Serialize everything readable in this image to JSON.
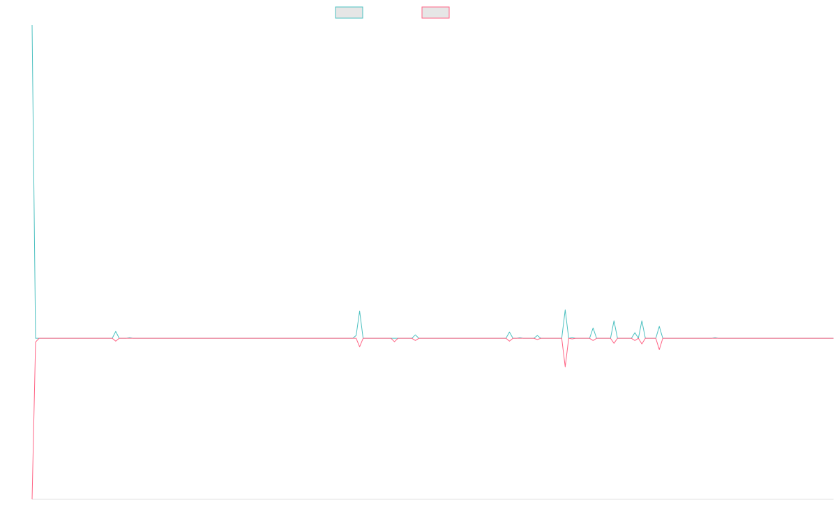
{
  "chart_data": {
    "type": "line",
    "categories": [
      null,
      null,
      null,
      null,
      null,
      null,
      null,
      null,
      null,
      null,
      null,
      null,
      null,
      null,
      null,
      null,
      null,
      null,
      null,
      null,
      null,
      null,
      null,
      null,
      null,
      null,
      null,
      null,
      null,
      null,
      null,
      null,
      null,
      null,
      null,
      null,
      null,
      null,
      null,
      null,
      null,
      null,
      null,
      null,
      null,
      null,
      null,
      null,
      null,
      null,
      null,
      null,
      null,
      null,
      null,
      null,
      null,
      null,
      null,
      null,
      null,
      null,
      null,
      null,
      null,
      null,
      null,
      null,
      null,
      null,
      null,
      null,
      null,
      null,
      null,
      null,
      null,
      null,
      null,
      null,
      null,
      null,
      null,
      null,
      null,
      null,
      null,
      null,
      null,
      null,
      null,
      null,
      null,
      null,
      null,
      null,
      null,
      null,
      null,
      null,
      null,
      null,
      null,
      null,
      null,
      null,
      null,
      null,
      null,
      null,
      null,
      null,
      null,
      null,
      null,
      null,
      null,
      null,
      null,
      null,
      null,
      null,
      null,
      null,
      null,
      null,
      null,
      null,
      null,
      null,
      null,
      null,
      null,
      null,
      null,
      null,
      null,
      null,
      null,
      null,
      null,
      null,
      null,
      null,
      null,
      null,
      null,
      null,
      null,
      null,
      null,
      null,
      null,
      null,
      null,
      null,
      null,
      null,
      null,
      null,
      null,
      null,
      null,
      null,
      null,
      null,
      null,
      null,
      null,
      null,
      null,
      null,
      null,
      null,
      null,
      null,
      null,
      null,
      null,
      null,
      null,
      null,
      null,
      null,
      null,
      null,
      null,
      null,
      null,
      null,
      null,
      null,
      null,
      null,
      null,
      null,
      null,
      null,
      null,
      null,
      null,
      null,
      null,
      null,
      null,
      null,
      null,
      null,
      null,
      null,
      null,
      null,
      null,
      null,
      null,
      null,
      null,
      null,
      null,
      null,
      null,
      null,
      null,
      null,
      null,
      null,
      null,
      null,
      null,
      null,
      null
    ],
    "series": [
      {
        "color": "#4bc0c0",
        "values": [
          100,
          0,
          0,
          0,
          0,
          0,
          0,
          0,
          0,
          0,
          0,
          0,
          0,
          0,
          0,
          0,
          0,
          0,
          0,
          0,
          0,
          0,
          0,
          0,
          2.2,
          0,
          0,
          0,
          0.2,
          0,
          0,
          0,
          0,
          0,
          0,
          0,
          0,
          0,
          0,
          0,
          0,
          0,
          0,
          0,
          0,
          0,
          0,
          0,
          0,
          0,
          0,
          0,
          0,
          0,
          0,
          0,
          0,
          0,
          0,
          0,
          0,
          0,
          0,
          0,
          0,
          0,
          0,
          0,
          0,
          0,
          0,
          0,
          0,
          0,
          0,
          0,
          0,
          0,
          0,
          0,
          0,
          0,
          0,
          0,
          0,
          0,
          0,
          0,
          0,
          0,
          0,
          0,
          0,
          0.9,
          8.7,
          0,
          0,
          0,
          0,
          0,
          0,
          0,
          0,
          0,
          0,
          0,
          0,
          0,
          0,
          0,
          1.1,
          0,
          0,
          0,
          0,
          0,
          0,
          0,
          0,
          0,
          0,
          0,
          0,
          0,
          0,
          0,
          0,
          0,
          0,
          0,
          0,
          0,
          0,
          0,
          0,
          0,
          0,
          2.0,
          0,
          0,
          0.2,
          0,
          0,
          0,
          0,
          0.9,
          0,
          0,
          0,
          0,
          0,
          0,
          0,
          9.1,
          0,
          0.2,
          0,
          0,
          0,
          0,
          0,
          3.3,
          0,
          0,
          0,
          0,
          0,
          5.6,
          0,
          0,
          0,
          0,
          0,
          1.8,
          0,
          5.6,
          0,
          0,
          0,
          0,
          3.8,
          0,
          0,
          0,
          0,
          0,
          0,
          0,
          0,
          0,
          0,
          0,
          0,
          0,
          0,
          0,
          0.2,
          0,
          0,
          0,
          0,
          0,
          0,
          0,
          0,
          0,
          0,
          0,
          0,
          0,
          0,
          0,
          0,
          0,
          0,
          0,
          0,
          0,
          0,
          0,
          0,
          0,
          0,
          0,
          0,
          0,
          0,
          0,
          0,
          0,
          0
        ]
      },
      {
        "color": "#ff6384",
        "values": [
          -51.4,
          -1.2,
          0,
          0,
          0,
          0,
          0,
          0,
          0,
          0,
          0,
          0,
          0,
          0,
          0,
          0,
          0,
          0,
          0,
          0,
          0,
          0,
          0,
          0,
          -0.9,
          0,
          0,
          0,
          0,
          0,
          0,
          0,
          0,
          0,
          0,
          0,
          0,
          0,
          0,
          0,
          0,
          0,
          0,
          0,
          0,
          0,
          0,
          0,
          0,
          0,
          0,
          0,
          0,
          0,
          0,
          0,
          0,
          0,
          0,
          0,
          0,
          0,
          0,
          0,
          0,
          0,
          0,
          0,
          0,
          0,
          0,
          0,
          0,
          0,
          0,
          0,
          0,
          0,
          0,
          0,
          0,
          0,
          0,
          0,
          0,
          0,
          0,
          0,
          0,
          0,
          0,
          0,
          0,
          0,
          -2.7,
          0,
          0,
          0,
          0,
          0,
          0,
          0,
          0,
          0,
          -1.1,
          0,
          0,
          0,
          0,
          0,
          -0.7,
          0,
          0,
          0,
          0,
          0,
          0,
          0,
          0,
          0,
          0,
          0,
          0,
          0,
          0,
          0,
          0,
          0,
          0,
          0,
          0,
          0,
          0,
          0,
          0,
          0,
          0,
          -0.9,
          0,
          0,
          0,
          0,
          0,
          0,
          0,
          -0.4,
          0,
          0,
          0,
          0,
          0,
          0,
          0,
          -9.1,
          0,
          -0.2,
          0,
          0,
          0,
          0,
          0,
          -0.7,
          0,
          0,
          0,
          0,
          0,
          -1.6,
          0,
          0,
          0,
          0,
          0,
          -0.7,
          0,
          -1.8,
          0,
          0,
          0,
          0,
          -3.6,
          0,
          0,
          0,
          0,
          0,
          0,
          0,
          0,
          0,
          0,
          0,
          0,
          0,
          0,
          0,
          0,
          0,
          0,
          0,
          0,
          0,
          0,
          0,
          0,
          0,
          0,
          0,
          0,
          0,
          0,
          0,
          0,
          0,
          0,
          0,
          0,
          0,
          0,
          0,
          0,
          0,
          0,
          0,
          0,
          0,
          0,
          0,
          0,
          0,
          0
        ]
      }
    ],
    "ylim": [
      -51.4,
      100
    ]
  }
}
